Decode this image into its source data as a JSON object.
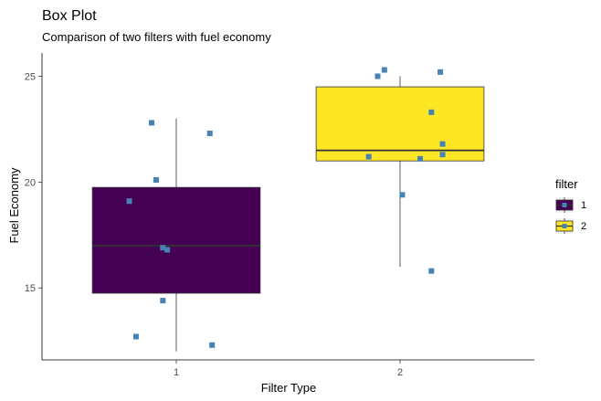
{
  "chart_data": {
    "type": "box",
    "title": "Box Plot",
    "subtitle": "Comparison of two filters with fuel economy",
    "xlabel": "Filter Type",
    "ylabel": "Fuel Economy",
    "categories": [
      "1",
      "2"
    ],
    "ylim": [
      11.6,
      26.1
    ],
    "yticks": [
      15,
      20,
      25
    ],
    "grid": false,
    "legend": {
      "title": "filter",
      "placement": "right",
      "entries": [
        {
          "label": "1",
          "color": "#440154"
        },
        {
          "label": "2",
          "color": "#FDE725"
        }
      ]
    },
    "boxes": [
      {
        "category": "1",
        "min": 12.0,
        "q1": 14.75,
        "median": 17.0,
        "q3": 19.75,
        "max": 23.0,
        "fill": "#440154"
      },
      {
        "category": "2",
        "min": 16.0,
        "q1": 21.0,
        "median": 21.5,
        "q3": 24.5,
        "max": 25.0,
        "fill": "#FDE725"
      }
    ],
    "points_color": "#4682B4",
    "points": [
      {
        "category": "1",
        "x": 0.82,
        "y": 12.7
      },
      {
        "category": "1",
        "x": 0.89,
        "y": 22.8
      },
      {
        "category": "1",
        "x": 0.91,
        "y": 20.1
      },
      {
        "category": "1",
        "x": 0.79,
        "y": 19.1
      },
      {
        "category": "1",
        "x": 0.94,
        "y": 16.9
      },
      {
        "category": "1",
        "x": 0.96,
        "y": 16.8
      },
      {
        "category": "1",
        "x": 0.94,
        "y": 14.4
      },
      {
        "category": "1",
        "x": 1.15,
        "y": 22.3
      },
      {
        "category": "1",
        "x": 1.16,
        "y": 12.3
      },
      {
        "category": "2",
        "x": 1.86,
        "y": 21.2
      },
      {
        "category": "2",
        "x": 1.9,
        "y": 25.0
      },
      {
        "category": "2",
        "x": 1.93,
        "y": 25.3
      },
      {
        "category": "2",
        "x": 2.01,
        "y": 19.4
      },
      {
        "category": "2",
        "x": 2.09,
        "y": 21.1
      },
      {
        "category": "2",
        "x": 2.14,
        "y": 23.3
      },
      {
        "category": "2",
        "x": 2.14,
        "y": 15.8
      },
      {
        "category": "2",
        "x": 2.18,
        "y": 25.2
      },
      {
        "category": "2",
        "x": 2.19,
        "y": 21.3
      },
      {
        "category": "2",
        "x": 2.19,
        "y": 21.8
      }
    ]
  }
}
